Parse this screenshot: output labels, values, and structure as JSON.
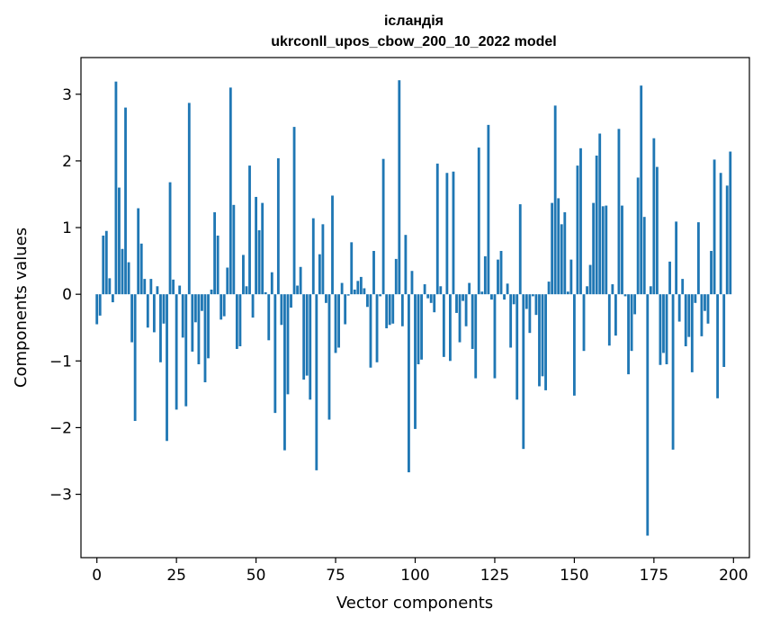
{
  "chart_data": {
    "type": "bar",
    "title": "ісландія",
    "subtitle": "ukrconll_upos_cbow_200_10_2022 model",
    "xlabel": "Vector components",
    "ylabel": "Components values",
    "bar_color": "#1f77b4",
    "xlim": [
      -5,
      205
    ],
    "ylim": [
      -3.95,
      3.55
    ],
    "xticks": [
      0,
      25,
      50,
      75,
      100,
      125,
      150,
      175,
      200
    ],
    "yticks": [
      -3,
      -2,
      -1,
      0,
      1,
      2,
      3
    ],
    "xtick_labels": [
      "0",
      "25",
      "50",
      "75",
      "100",
      "125",
      "150",
      "175",
      "200"
    ],
    "ytick_labels": [
      "−3",
      "−2",
      "−1",
      "0",
      "1",
      "2",
      "3"
    ],
    "grid": false,
    "x": [
      0,
      1,
      2,
      3,
      4,
      5,
      6,
      7,
      8,
      9,
      10,
      11,
      12,
      13,
      14,
      15,
      16,
      17,
      18,
      19,
      20,
      21,
      22,
      23,
      24,
      25,
      26,
      27,
      28,
      29,
      30,
      31,
      32,
      33,
      34,
      35,
      36,
      37,
      38,
      39,
      40,
      41,
      42,
      43,
      44,
      45,
      46,
      47,
      48,
      49,
      50,
      51,
      52,
      53,
      54,
      55,
      56,
      57,
      58,
      59,
      60,
      61,
      62,
      63,
      64,
      65,
      66,
      67,
      68,
      69,
      70,
      71,
      72,
      73,
      74,
      75,
      76,
      77,
      78,
      79,
      80,
      81,
      82,
      83,
      84,
      85,
      86,
      87,
      88,
      89,
      90,
      91,
      92,
      93,
      94,
      95,
      96,
      97,
      98,
      99,
      100,
      101,
      102,
      103,
      104,
      105,
      106,
      107,
      108,
      109,
      110,
      111,
      112,
      113,
      114,
      115,
      116,
      117,
      118,
      119,
      120,
      121,
      122,
      123,
      124,
      125,
      126,
      127,
      128,
      129,
      130,
      131,
      132,
      133,
      134,
      135,
      136,
      137,
      138,
      139,
      140,
      141,
      142,
      143,
      144,
      145,
      146,
      147,
      148,
      149,
      150,
      151,
      152,
      153,
      154,
      155,
      156,
      157,
      158,
      159,
      160,
      161,
      162,
      163,
      164,
      165,
      166,
      167,
      168,
      169,
      170,
      171,
      172,
      173,
      174,
      175,
      176,
      177,
      178,
      179,
      180,
      181,
      182,
      183,
      184,
      185,
      186,
      187,
      188,
      189,
      190,
      191,
      192,
      193,
      194,
      195,
      196,
      197,
      198,
      199
    ],
    "values": [
      -0.45,
      -0.32,
      0.88,
      0.95,
      0.24,
      -0.12,
      3.19,
      1.6,
      0.68,
      2.8,
      0.48,
      -0.72,
      -1.9,
      1.29,
      0.76,
      0.23,
      -0.5,
      0.23,
      -0.57,
      0.12,
      -1.02,
      -0.44,
      -2.2,
      1.68,
      0.22,
      -1.73,
      0.13,
      -0.65,
      -1.68,
      2.87,
      -0.86,
      -0.42,
      -1.05,
      -0.25,
      -1.32,
      -0.96,
      0.07,
      1.23,
      0.88,
      -0.38,
      -0.33,
      0.4,
      3.1,
      1.34,
      -0.82,
      -0.78,
      0.59,
      0.12,
      1.93,
      -0.35,
      1.46,
      0.96,
      1.37,
      0.03,
      -0.69,
      0.33,
      -1.78,
      2.04,
      -0.46,
      -2.34,
      -1.5,
      -0.2,
      2.51,
      0.13,
      0.41,
      -1.28,
      -1.22,
      -1.58,
      1.14,
      -2.64,
      0.6,
      1.05,
      -0.13,
      -1.88,
      1.48,
      -0.88,
      -0.8,
      0.17,
      -0.45,
      -0.02,
      0.78,
      0.07,
      0.2,
      0.26,
      0.09,
      -0.19,
      -1.1,
      0.65,
      -1.02,
      -0.03,
      2.03,
      -0.51,
      -0.46,
      -0.44,
      0.53,
      3.21,
      -0.48,
      0.89,
      -2.67,
      0.35,
      -2.02,
      -1.05,
      -0.98,
      0.15,
      -0.06,
      -0.13,
      -0.27,
      1.96,
      0.12,
      -0.94,
      1.82,
      -1.0,
      1.84,
      -0.28,
      -0.72,
      -0.1,
      -0.48,
      0.17,
      -0.82,
      -1.26,
      2.2,
      0.04,
      0.57,
      2.54,
      -0.08,
      -1.26,
      0.52,
      0.65,
      -0.08,
      0.16,
      -0.8,
      -0.15,
      -1.58,
      1.35,
      -2.32,
      -0.22,
      -0.58,
      -0.03,
      -0.31,
      -1.38,
      -1.23,
      -1.44,
      0.19,
      1.37,
      2.83,
      1.44,
      1.05,
      1.23,
      0.04,
      0.52,
      -1.52,
      1.93,
      2.19,
      -0.85,
      0.12,
      0.44,
      1.37,
      2.08,
      2.41,
      1.32,
      1.33,
      -0.77,
      0.15,
      -0.62,
      2.48,
      1.33,
      -0.03,
      -1.2,
      -0.85,
      -0.3,
      1.75,
      3.13,
      1.16,
      -3.62,
      0.12,
      2.34,
      1.91,
      -1.06,
      -0.88,
      -1.05,
      0.49,
      -2.33,
      1.09,
      -0.41,
      0.23,
      -0.78,
      -0.64,
      -1.17,
      -0.13,
      1.08,
      -0.63,
      -0.25,
      -0.44,
      0.65,
      2.02,
      -1.56,
      1.82,
      -1.09,
      1.63,
      2.14
    ]
  }
}
